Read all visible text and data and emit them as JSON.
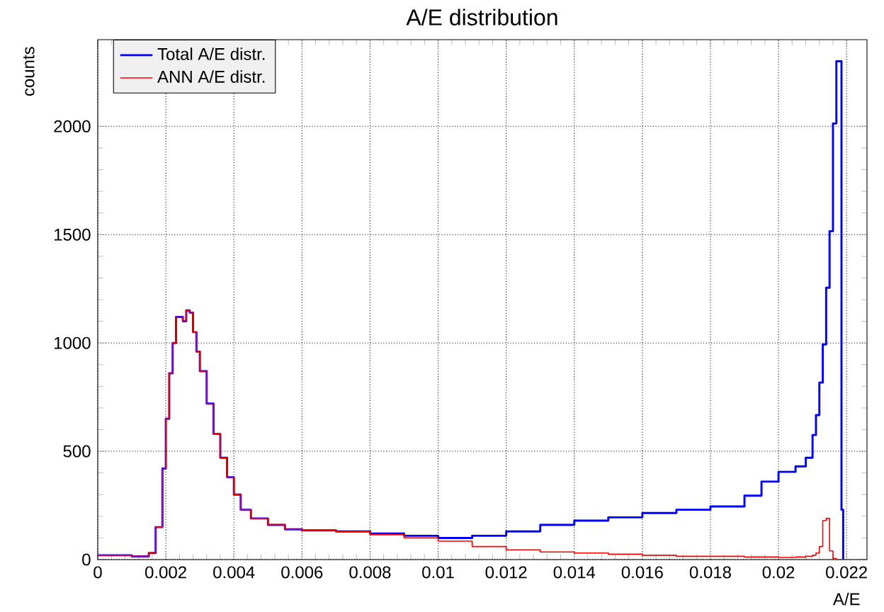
{
  "chart_data": {
    "type": "step",
    "title": "A/E distribution",
    "xlabel": "A/E",
    "ylabel": "counts",
    "x": [
      0,
      0.0005,
      0.001,
      0.0015,
      0.0017,
      0.0019,
      0.002,
      0.0021,
      0.0022,
      0.0023,
      0.0024,
      0.0025,
      0.0026,
      0.0027,
      0.0028,
      0.0029,
      0.003,
      0.0032,
      0.0034,
      0.0036,
      0.0038,
      0.004,
      0.0042,
      0.0045,
      0.005,
      0.0055,
      0.006,
      0.007,
      0.008,
      0.009,
      0.01,
      0.011,
      0.012,
      0.013,
      0.014,
      0.015,
      0.016,
      0.017,
      0.018,
      0.019,
      0.0195,
      0.02,
      0.0205,
      0.0208,
      0.021,
      0.0211,
      0.0212,
      0.0213,
      0.0214,
      0.0215,
      0.0216,
      0.0217,
      0.0218,
      0.02185,
      0.0219
    ],
    "series": [
      {
        "name": "Total A/E distr.",
        "color": "#0000ff",
        "values": [
          20,
          20,
          15,
          30,
          150,
          420,
          650,
          860,
          1000,
          1120,
          1120,
          1100,
          1150,
          1140,
          1050,
          960,
          870,
          720,
          580,
          470,
          380,
          300,
          230,
          190,
          160,
          140,
          135,
          130,
          120,
          110,
          100,
          110,
          130,
          160,
          180,
          195,
          215,
          230,
          245,
          295,
          360,
          405,
          430,
          470,
          575,
          667,
          817,
          993,
          1255,
          1516,
          2013,
          2300,
          2300,
          230,
          0
        ]
      },
      {
        "name": "ANN A/E distr.",
        "color": "#ff0000",
        "values": [
          20,
          20,
          15,
          30,
          150,
          420,
          650,
          860,
          1000,
          1120,
          1120,
          1100,
          1150,
          1140,
          1050,
          960,
          870,
          720,
          580,
          470,
          380,
          300,
          230,
          190,
          160,
          140,
          135,
          130,
          115,
          100,
          85,
          60,
          45,
          35,
          30,
          25,
          20,
          15,
          15,
          12,
          12,
          10,
          12,
          15,
          20,
          30,
          60,
          180,
          190,
          40,
          5,
          0,
          0,
          0,
          0
        ]
      }
    ],
    "xlim": [
      0,
      0.0226
    ],
    "ylim": [
      0,
      2400
    ],
    "xticks": [
      0,
      0.002,
      0.004,
      0.006,
      0.008,
      0.01,
      0.012,
      0.014,
      0.016,
      0.018,
      0.02,
      0.022
    ],
    "yticks": [
      0,
      500,
      1000,
      1500,
      2000
    ],
    "grid": true,
    "legend": "top left"
  }
}
